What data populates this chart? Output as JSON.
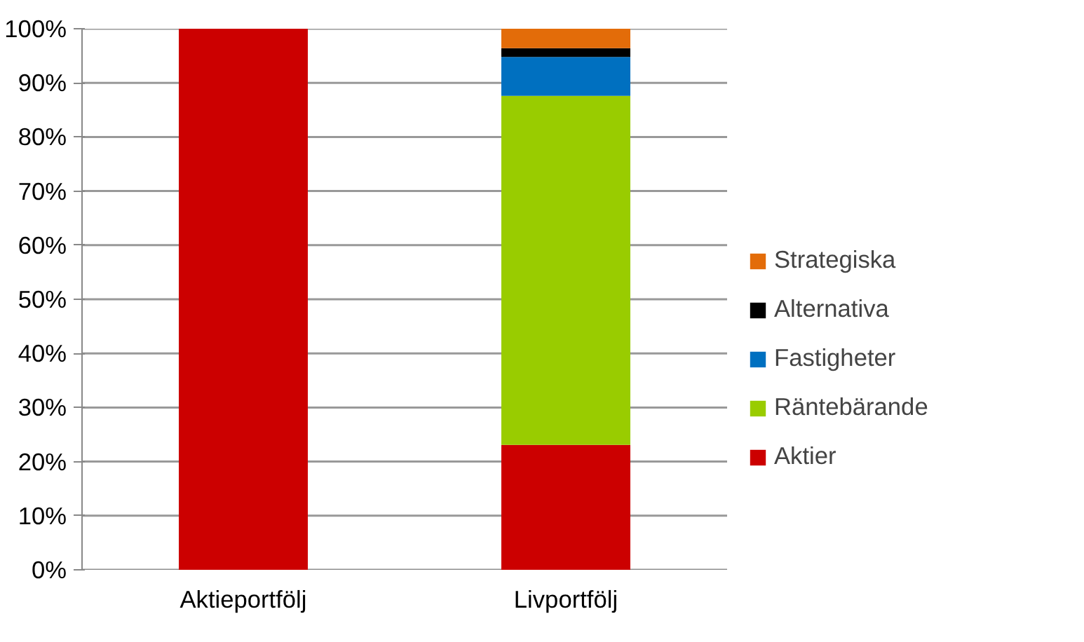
{
  "chart_data": {
    "type": "bar",
    "stacked": true,
    "categories": [
      "Aktieportfölj",
      "Livportfölj"
    ],
    "series": [
      {
        "name": "Aktier",
        "color": "#cc0000",
        "values": [
          100,
          23.1
        ]
      },
      {
        "name": "Räntebärande",
        "color": "#99cc00",
        "values": [
          0,
          64.5
        ]
      },
      {
        "name": "Fastigheter",
        "color": "#0070c0",
        "values": [
          0,
          7.2
        ]
      },
      {
        "name": "Alternativa",
        "color": "#000000",
        "values": [
          0,
          1.6
        ]
      },
      {
        "name": "Strategiska",
        "color": "#e36c09",
        "values": [
          0,
          3.6
        ]
      }
    ],
    "ylim": [
      0,
      100
    ],
    "yticks": [
      {
        "value": 0,
        "label": "0%"
      },
      {
        "value": 10,
        "label": "10%"
      },
      {
        "value": 20,
        "label": "20%"
      },
      {
        "value": 30,
        "label": "30%"
      },
      {
        "value": 40,
        "label": "40%"
      },
      {
        "value": 50,
        "label": "50%"
      },
      {
        "value": 60,
        "label": "60%"
      },
      {
        "value": 70,
        "label": "70%"
      },
      {
        "value": 80,
        "label": "80%"
      },
      {
        "value": 90,
        "label": "90%"
      },
      {
        "value": 100,
        "label": "100%"
      }
    ],
    "grid": "y",
    "legend": "right"
  }
}
